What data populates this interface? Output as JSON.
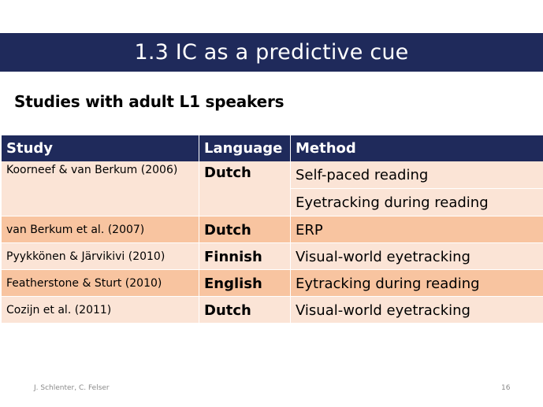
{
  "slide": {
    "title": "1.3 IC as a predictive cue",
    "subtitle": "Studies with adult L1 speakers"
  },
  "table": {
    "headers": {
      "study": "Study",
      "language": "Language",
      "method": "Method"
    },
    "rows": [
      {
        "study": "Koorneef & van Berkum (2006)",
        "language": "Dutch",
        "methods": [
          "Self-paced reading",
          "Eyetracking during reading"
        ]
      },
      {
        "study": "van Berkum et al. (2007)",
        "language": "Dutch",
        "method": "ERP"
      },
      {
        "study": "Pyykkönen & Järvikivi (2010)",
        "language": "Finnish",
        "method": "Visual-world eyetracking"
      },
      {
        "study": "Featherstone & Sturt (2010)",
        "language": "English",
        "method": "Eytracking during reading"
      },
      {
        "study": "Cozijn et al. (2011)",
        "language": "Dutch",
        "method": "Visual-world eyetracking"
      }
    ]
  },
  "footer": {
    "authors": "J. Schlenter, C. Felser",
    "page_number": "16"
  },
  "colors": {
    "header_navy": "#1f2a5b",
    "row_light": "#fbe4d6",
    "row_dark": "#f8c4a0",
    "footer_gray": "#8a8a8a"
  }
}
